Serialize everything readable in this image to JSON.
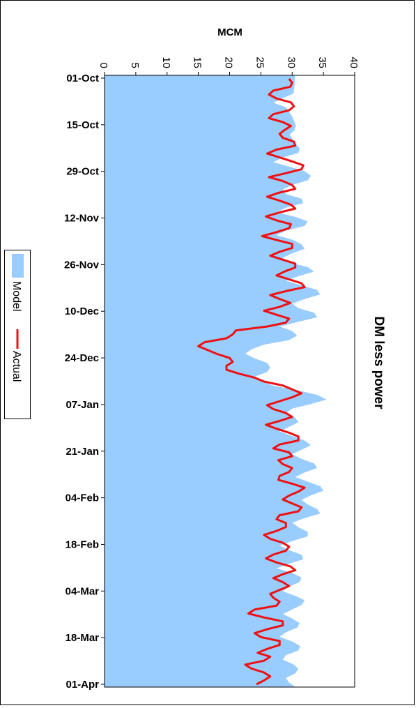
{
  "chart_data": {
    "type": "area",
    "title": "DM less power",
    "xlabel": "MCM",
    "ylabel": "",
    "xlim": [
      0,
      40
    ],
    "x_ticks": [
      0,
      5,
      10,
      15,
      20,
      25,
      30,
      35,
      40
    ],
    "date_ticks": [
      "01-Oct",
      "15-Oct",
      "29-Oct",
      "12-Nov",
      "26-Nov",
      "10-Dec",
      "24-Dec",
      "07-Jan",
      "21-Jan",
      "04-Feb",
      "18-Feb",
      "04-Mar",
      "18-Mar",
      "01-Apr"
    ],
    "series": [
      {
        "name": "Model",
        "color": "#99ccff",
        "values": [
          30.5,
          30.4,
          30.4,
          30.3,
          30.2,
          28.5,
          27.0,
          29.0,
          29.5,
          30.0,
          30.3,
          30.6,
          30.4,
          29.6,
          30.1,
          30.6,
          31.2,
          31.0,
          28.5,
          27.0,
          29.5,
          32.0,
          33.0,
          32.5,
          30.0,
          28.5,
          29.0,
          31.5,
          31.8,
          29.0,
          27.5,
          30.5,
          32.5,
          32.0,
          29.0,
          27.5,
          30.0,
          31.5,
          32.0,
          30.0,
          28.5,
          29.5,
          32.5,
          33.5,
          31.0,
          29.0,
          31.5,
          34.0,
          34.5,
          32.0,
          30.0,
          31.0,
          33.5,
          34.0,
          31.0,
          28.0,
          30.0,
          30.8,
          29.5,
          25.5,
          23.5,
          22.5,
          24.0,
          26.0,
          26.5,
          26.0,
          24.0,
          25.0,
          27.0,
          31.0,
          34.0,
          35.5,
          33.0,
          30.0,
          29.0,
          30.5,
          31.0,
          29.5,
          28.0,
          30.0,
          32.0,
          33.0,
          31.5,
          30.0,
          31.5,
          33.5,
          34.0,
          32.0,
          30.5,
          32.5,
          34.5,
          35.0,
          33.0,
          31.5,
          32.5,
          34.0,
          34.5,
          32.0,
          30.0,
          31.0,
          32.5,
          32.5,
          30.0,
          28.0,
          29.5,
          31.5,
          31.8,
          29.5,
          27.5,
          30.0,
          31.5,
          31.2,
          29.5,
          28.5,
          30.5,
          32.0,
          31.5,
          30.0,
          28.5,
          30.0,
          31.2,
          30.8,
          29.0,
          28.0,
          30.0,
          31.3,
          31.0,
          29.0,
          28.5,
          30.2,
          31.0,
          30.5,
          29.0,
          29.5,
          30.5
        ]
      },
      {
        "name": "Actual",
        "color": "#ee1111",
        "values": [
          29.5,
          30.0,
          29.7,
          27.0,
          26.3,
          27.5,
          29.8,
          30.3,
          29.5,
          27.0,
          26.3,
          28.5,
          29.8,
          28.8,
          28.0,
          28.5,
          30.3,
          30.5,
          27.5,
          26.0,
          28.0,
          30.0,
          31.8,
          31.5,
          29.0,
          26.3,
          28.5,
          30.0,
          30.5,
          27.8,
          26.0,
          28.0,
          29.8,
          30.5,
          28.0,
          25.8,
          27.5,
          29.8,
          29.5,
          27.5,
          25.2,
          27.5,
          30.0,
          30.0,
          28.0,
          26.5,
          28.5,
          30.5,
          30.5,
          28.8,
          27.5,
          29.5,
          31.5,
          32.0,
          29.0,
          26.5,
          28.0,
          29.7,
          28.0,
          25.5,
          27.5,
          29.5,
          29.0,
          26.0,
          21.0,
          20.5,
          19.5,
          16.0,
          15.0,
          16.5,
          18.0,
          20.0,
          20.5,
          19.5,
          19.5,
          21.5,
          24.0,
          25.5,
          28.5,
          30.0,
          31.5,
          30.0,
          28.0,
          26.0,
          27.0,
          29.0,
          30.0,
          28.0,
          25.8,
          27.5,
          29.5,
          31.0,
          31.0,
          28.0,
          27.0,
          29.5,
          30.0,
          27.8,
          28.5,
          30.0,
          29.5,
          28.0,
          27.8,
          30.0,
          32.0,
          31.0,
          29.5,
          28.5,
          30.0,
          31.5,
          31.0,
          28.0,
          27.5,
          29.0,
          29.0,
          27.5,
          25.5,
          26.5,
          28.5,
          29.5,
          29.0,
          27.0,
          25.8,
          27.5,
          29.7,
          30.5,
          28.5,
          27.0,
          28.5,
          29.5,
          28.0,
          26.5,
          27.0,
          28.0,
          27.5,
          24.0,
          23.0,
          25.5,
          28.5,
          28.5,
          26.0,
          24.0,
          25.0,
          28.0,
          28.0,
          26.0,
          24.5,
          26.5,
          25.5,
          22.5,
          23.5,
          25.5,
          26.5,
          25.5,
          24.3
        ]
      }
    ],
    "legend": {
      "position": "left",
      "entries": [
        "Model",
        "Actual"
      ]
    },
    "grid": false
  }
}
